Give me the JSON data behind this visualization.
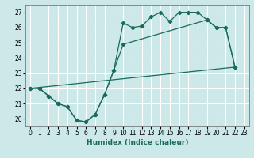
{
  "bg_color": "#cce8e8",
  "grid_color": "#b0d8d8",
  "line_color": "#1a6b5a",
  "xlabel": "Humidex (Indice chaleur)",
  "ylim": [
    19.5,
    27.5
  ],
  "xlim": [
    -0.5,
    23.5
  ],
  "yticks": [
    20,
    21,
    22,
    23,
    24,
    25,
    26,
    27
  ],
  "xtick_labels": [
    "0",
    "1",
    "2",
    "3",
    "4",
    "5",
    "6",
    "7",
    "8",
    "9",
    "10",
    "11",
    "12",
    "13",
    "14",
    "15",
    "16",
    "17",
    "18",
    "19",
    "20",
    "21",
    "22",
    "23"
  ],
  "line1_x": [
    0,
    1,
    2,
    3,
    4,
    5,
    6,
    7,
    8,
    9,
    10,
    11,
    12,
    13,
    14,
    15,
    16,
    17,
    18,
    19,
    20,
    21,
    22
  ],
  "line1_y": [
    22.0,
    22.0,
    21.5,
    21.0,
    20.8,
    19.9,
    19.8,
    20.3,
    21.6,
    23.2,
    26.3,
    26.0,
    26.1,
    26.7,
    27.0,
    26.4,
    27.0,
    27.0,
    27.0,
    26.5,
    26.0,
    26.0,
    23.4
  ],
  "line2_x": [
    0,
    1,
    2,
    3,
    4,
    5,
    6,
    7,
    8,
    9,
    10,
    19,
    20,
    21,
    22
  ],
  "line2_y": [
    22.0,
    22.0,
    21.5,
    21.0,
    20.8,
    19.9,
    19.8,
    20.3,
    21.6,
    23.2,
    24.9,
    26.5,
    26.0,
    26.0,
    23.4
  ],
  "line3_x": [
    0,
    22
  ],
  "line3_y": [
    22.0,
    23.4
  ],
  "ylabel_fontsize": 6,
  "tick_fontsize": 5.5,
  "xlabel_fontsize": 6.5
}
